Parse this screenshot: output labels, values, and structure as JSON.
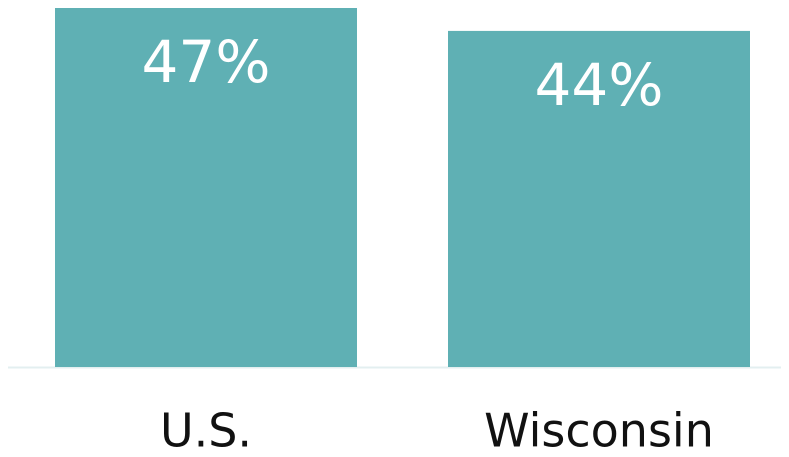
{
  "chart_data": {
    "type": "bar",
    "categories": [
      "U.S.",
      "Wisconsin"
    ],
    "values": [
      47,
      44
    ],
    "value_labels": [
      "47%",
      "44%"
    ],
    "color": "#5fb0b4"
  }
}
